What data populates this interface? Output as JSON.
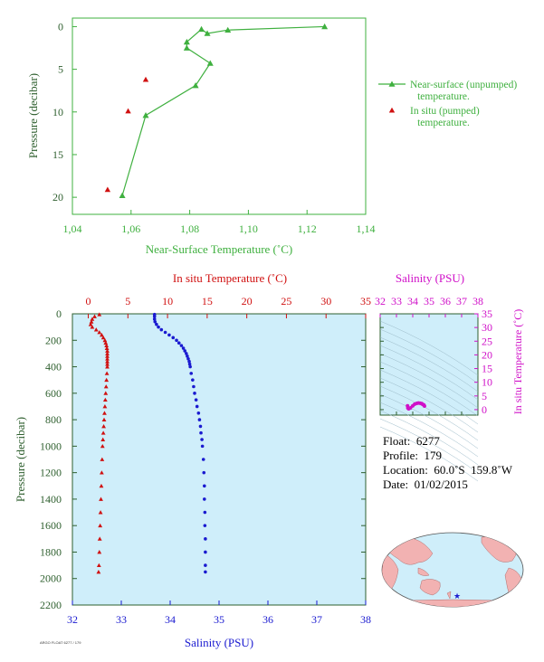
{
  "colors": {
    "near_surface": "#3fb03f",
    "in_situ": "#d01010",
    "salinity": "#1a1ad0",
    "ts": "#d010c8",
    "axis_dark": "#2e5f2e",
    "panel_bg": "#cfeefa"
  },
  "chart_data": [
    {
      "type": "scatter",
      "id": "near-surface",
      "xlabel": "Near-Surface Temperature (˚C)",
      "ylabel": "Pressure (decibar)",
      "xlim": [
        1.04,
        1.14
      ],
      "ylim": [
        22,
        -1
      ],
      "y_inverted": true,
      "xticks": [
        "1,04",
        "1,06",
        "1,08",
        "1,10",
        "1,12",
        "1,14"
      ],
      "xtick_values": [
        1.04,
        1.06,
        1.08,
        1.1,
        1.12,
        1.14
      ],
      "yticks": [
        0,
        5,
        10,
        15,
        20
      ],
      "legend_position": "right",
      "series": [
        {
          "name": "Near-surface (unpumped) temperature.",
          "name_lines": [
            "Near-surface (unpumped)",
            "temperature."
          ],
          "marker": "triangle",
          "line": true,
          "points": [
            [
              1.126,
              0.0
            ],
            [
              1.093,
              0.4
            ],
            [
              1.086,
              0.8
            ],
            [
              1.084,
              0.3
            ],
            [
              1.079,
              1.8
            ],
            [
              1.079,
              2.5
            ],
            [
              1.087,
              4.3
            ],
            [
              1.082,
              6.9
            ],
            [
              1.065,
              10.4
            ],
            [
              1.057,
              19.8
            ]
          ]
        },
        {
          "name": "In situ (pumped) temperature.",
          "name_lines": [
            "In situ (pumped)",
            "temperature."
          ],
          "marker": "triangle",
          "line": false,
          "points": [
            [
              1.065,
              6.2
            ],
            [
              1.059,
              9.9
            ],
            [
              1.052,
              19.1
            ]
          ]
        }
      ]
    },
    {
      "type": "scatter",
      "id": "profile",
      "ylabel": "Pressure (decibar)",
      "ylim": [
        2200,
        0
      ],
      "y_inverted": true,
      "yticks": [
        0,
        200,
        400,
        600,
        800,
        1000,
        1200,
        1400,
        1600,
        1800,
        2000,
        2200
      ],
      "top_axis": {
        "label": "In situ Temperature (˚C)",
        "lim": [
          -2,
          35
        ],
        "ticks": [
          0,
          5,
          10,
          15,
          20,
          25,
          30,
          35
        ]
      },
      "bottom_axis": {
        "label": "Salinity (PSU)",
        "lim": [
          32,
          38
        ],
        "ticks": [
          32,
          33,
          34,
          35,
          36,
          37,
          38
        ]
      },
      "series": [
        {
          "name": "In situ Temperature",
          "marker": "triangle",
          "axis": "top",
          "points": [
            [
              1.4,
              5
            ],
            [
              0.8,
              20
            ],
            [
              0.5,
              40
            ],
            [
              0.4,
              60
            ],
            [
              0.3,
              80
            ],
            [
              0.5,
              100
            ],
            [
              1.0,
              120
            ],
            [
              1.4,
              140
            ],
            [
              1.7,
              160
            ],
            [
              1.9,
              180
            ],
            [
              2.1,
              200
            ],
            [
              2.2,
              220
            ],
            [
              2.3,
              240
            ],
            [
              2.35,
              260
            ],
            [
              2.4,
              280
            ],
            [
              2.4,
              300
            ],
            [
              2.4,
              320
            ],
            [
              2.4,
              340
            ],
            [
              2.4,
              360
            ],
            [
              2.4,
              380
            ],
            [
              2.4,
              400
            ],
            [
              2.35,
              450
            ],
            [
              2.3,
              500
            ],
            [
              2.25,
              550
            ],
            [
              2.2,
              600
            ],
            [
              2.15,
              650
            ],
            [
              2.1,
              700
            ],
            [
              2.05,
              750
            ],
            [
              2.0,
              800
            ],
            [
              1.95,
              850
            ],
            [
              1.9,
              900
            ],
            [
              1.85,
              950
            ],
            [
              1.8,
              1000
            ],
            [
              1.75,
              1100
            ],
            [
              1.7,
              1200
            ],
            [
              1.65,
              1300
            ],
            [
              1.6,
              1400
            ],
            [
              1.55,
              1500
            ],
            [
              1.5,
              1600
            ],
            [
              1.45,
              1700
            ],
            [
              1.4,
              1800
            ],
            [
              1.35,
              1900
            ],
            [
              1.3,
              1950
            ]
          ]
        },
        {
          "name": "Salinity",
          "marker": "circle",
          "axis": "bottom",
          "points": [
            [
              33.68,
              5
            ],
            [
              33.68,
              20
            ],
            [
              33.68,
              40
            ],
            [
              33.69,
              60
            ],
            [
              33.72,
              80
            ],
            [
              33.76,
              100
            ],
            [
              33.82,
              120
            ],
            [
              33.9,
              140
            ],
            [
              33.98,
              160
            ],
            [
              34.06,
              180
            ],
            [
              34.13,
              200
            ],
            [
              34.18,
              220
            ],
            [
              34.23,
              240
            ],
            [
              34.27,
              260
            ],
            [
              34.3,
              280
            ],
            [
              34.33,
              300
            ],
            [
              34.35,
              320
            ],
            [
              34.37,
              340
            ],
            [
              34.39,
              360
            ],
            [
              34.4,
              380
            ],
            [
              34.41,
              400
            ],
            [
              34.43,
              450
            ],
            [
              34.46,
              500
            ],
            [
              34.48,
              550
            ],
            [
              34.5,
              600
            ],
            [
              34.53,
              650
            ],
            [
              34.55,
              700
            ],
            [
              34.58,
              750
            ],
            [
              34.6,
              800
            ],
            [
              34.62,
              850
            ],
            [
              34.63,
              900
            ],
            [
              34.65,
              950
            ],
            [
              34.66,
              1000
            ],
            [
              34.68,
              1100
            ],
            [
              34.69,
              1200
            ],
            [
              34.7,
              1300
            ],
            [
              34.7,
              1400
            ],
            [
              34.71,
              1500
            ],
            [
              34.71,
              1600
            ],
            [
              34.72,
              1700
            ],
            [
              34.72,
              1800
            ],
            [
              34.72,
              1900
            ],
            [
              34.72,
              1950
            ]
          ]
        }
      ]
    },
    {
      "type": "scatter",
      "id": "ts-diagram",
      "top_axis": {
        "label": "Salinity (PSU)",
        "lim": [
          32,
          38
        ],
        "ticks": [
          32,
          33,
          34,
          35,
          36,
          37,
          38
        ]
      },
      "right_axis": {
        "label": "In situ Temperature (˚C)",
        "lim": [
          -2,
          35
        ],
        "ticks": [
          0,
          5,
          10,
          15,
          20,
          25,
          30,
          35
        ]
      },
      "series": [
        {
          "name": "T-S",
          "marker": "circle",
          "points": [
            [
              33.68,
              1.4
            ],
            [
              33.7,
              0.6
            ],
            [
              33.75,
              0.3
            ],
            [
              33.85,
              0.6
            ],
            [
              34.0,
              1.4
            ],
            [
              34.12,
              2.0
            ],
            [
              34.25,
              2.3
            ],
            [
              34.35,
              2.4
            ],
            [
              34.45,
              2.35
            ],
            [
              34.55,
              2.2
            ],
            [
              34.62,
              1.9
            ],
            [
              34.68,
              1.7
            ],
            [
              34.72,
              1.3
            ]
          ]
        }
      ]
    }
  ],
  "info": {
    "float": "Float:  6277",
    "profile": "Profile:  179",
    "location": "Location:  60.0˚S  159.8˚W",
    "date": "Date:  01/02/2015"
  },
  "footer_code": "ARGO FLOAT 6277 / 179",
  "map": {
    "marker_icon": "star-icon",
    "float_position": {
      "lat": -60.0,
      "lon": -159.8
    }
  }
}
